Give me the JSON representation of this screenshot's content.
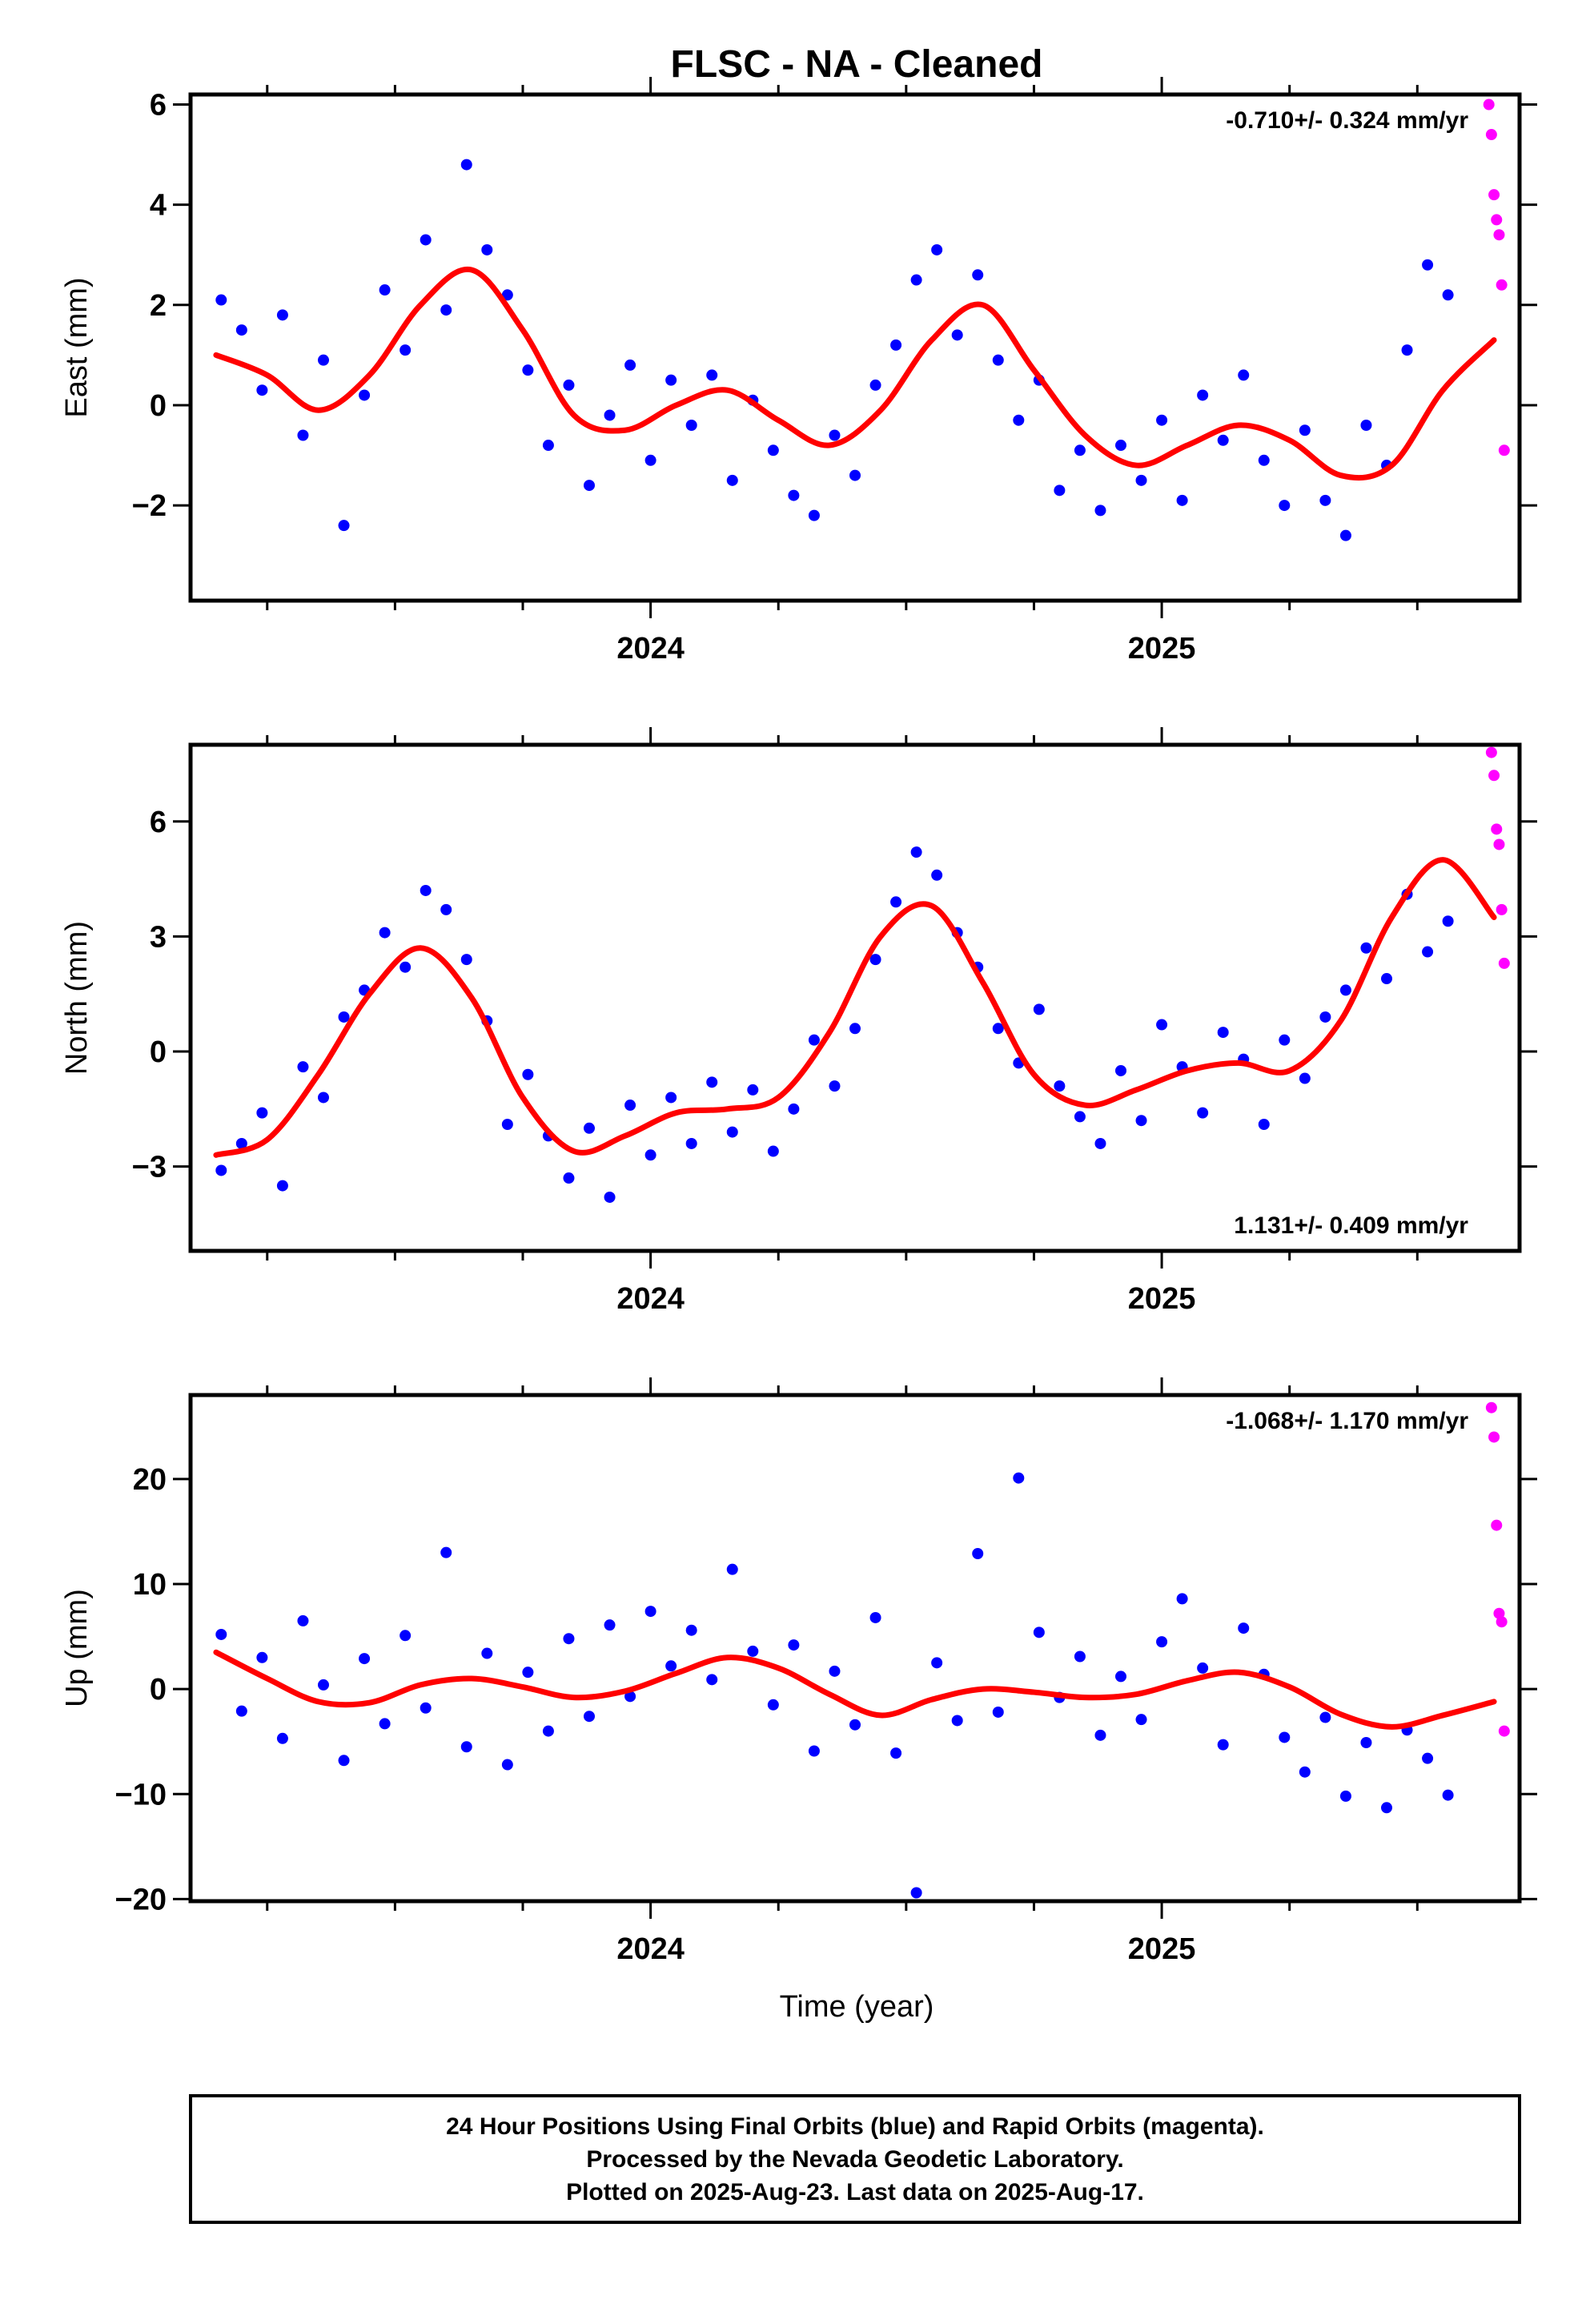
{
  "page": {
    "title": "FLSC  - NA - Cleaned",
    "xlabel": "Time (year)",
    "caption": [
      "24 Hour Positions Using Final Orbits (blue) and Rapid Orbits (magenta).",
      "Processed by the Nevada Geodetic Laboratory.",
      "Plotted on 2025-Aug-23. Last data on 2025-Aug-17."
    ]
  },
  "colors": {
    "final_orbits": "#0000ff",
    "rapid_orbits": "#ff00ff",
    "model_fit": "#ff0000",
    "frame": "#000000"
  },
  "chart_data": [
    {
      "type": "scatter",
      "component": "east",
      "ylabel": "East (mm)",
      "rate_label": "-0.710+/- 0.324 mm/yr",
      "rate_position": "top-right",
      "xlim": [
        2023.1,
        2025.7
      ],
      "ylim": [
        -3.9,
        6.2
      ],
      "x_ticks": [
        2024,
        2025
      ],
      "x_tick_labels": [
        "2024",
        "2025"
      ],
      "y_ticks": [
        -2,
        0,
        2,
        4,
        6
      ],
      "y_tick_labels": [
        "−2",
        "0",
        "2",
        "4",
        "6"
      ],
      "model_fit": {
        "x": [
          2023.15,
          2023.25,
          2023.35,
          2023.45,
          2023.55,
          2023.65,
          2023.75,
          2023.85,
          2023.95,
          2024.05,
          2024.15,
          2024.25,
          2024.35,
          2024.45,
          2024.55,
          2024.65,
          2024.75,
          2024.85,
          2024.95,
          2025.05,
          2025.15,
          2025.25,
          2025.35,
          2025.45,
          2025.55,
          2025.65
        ],
        "y": [
          1.0,
          0.6,
          -0.1,
          0.6,
          2.0,
          2.7,
          1.5,
          -0.2,
          -0.5,
          0.0,
          0.3,
          -0.3,
          -0.8,
          -0.1,
          1.3,
          2.0,
          0.7,
          -0.6,
          -1.2,
          -0.8,
          -0.4,
          -0.7,
          -1.4,
          -1.2,
          0.3,
          1.3
        ]
      },
      "final_orbits": {
        "x": [
          2023.16,
          2023.2,
          2023.24,
          2023.28,
          2023.32,
          2023.36,
          2023.4,
          2023.44,
          2023.48,
          2023.52,
          2023.56,
          2023.6,
          2023.64,
          2023.68,
          2023.72,
          2023.76,
          2023.8,
          2023.84,
          2023.88,
          2023.92,
          2023.96,
          2024.0,
          2024.04,
          2024.08,
          2024.12,
          2024.16,
          2024.2,
          2024.24,
          2024.28,
          2024.32,
          2024.36,
          2024.4,
          2024.44,
          2024.48,
          2024.52,
          2024.56,
          2024.6,
          2024.64,
          2024.68,
          2024.72,
          2024.76,
          2024.8,
          2024.84,
          2024.88,
          2024.92,
          2024.96,
          2025.0,
          2025.04,
          2025.08,
          2025.12,
          2025.16,
          2025.2,
          2025.24,
          2025.28,
          2025.32,
          2025.36,
          2025.4,
          2025.44,
          2025.48,
          2025.52,
          2025.56
        ],
        "y": [
          2.1,
          1.5,
          0.3,
          1.8,
          -0.6,
          0.9,
          -2.4,
          0.2,
          2.3,
          1.1,
          3.3,
          1.9,
          4.8,
          3.1,
          2.2,
          0.7,
          -0.8,
          0.4,
          -1.6,
          -0.2,
          0.8,
          -1.1,
          0.5,
          -0.4,
          0.6,
          -1.5,
          0.1,
          -0.9,
          -1.8,
          -2.2,
          -0.6,
          -1.4,
          0.4,
          1.2,
          2.5,
          3.1,
          1.4,
          2.6,
          0.9,
          -0.3,
          0.5,
          -1.7,
          -0.9,
          -2.1,
          -0.8,
          -1.5,
          -0.3,
          -1.9,
          0.2,
          -0.7,
          0.6,
          -1.1,
          -2.0,
          -0.5,
          -1.9,
          -2.6,
          -0.4,
          -1.2,
          1.1,
          2.8,
          2.2
        ]
      },
      "rapid_orbits": {
        "x": [
          2025.64,
          2025.645,
          2025.65,
          2025.655,
          2025.66,
          2025.665,
          2025.67
        ],
        "y": [
          6.0,
          5.4,
          4.2,
          3.7,
          3.4,
          2.4,
          -0.9
        ]
      }
    },
    {
      "type": "scatter",
      "component": "north",
      "ylabel": "North (mm)",
      "rate_label": "1.131+/- 0.409 mm/yr",
      "rate_position": "bottom-right",
      "xlim": [
        2023.1,
        2025.7
      ],
      "ylim": [
        -5.2,
        8.0
      ],
      "x_ticks": [
        2024,
        2025
      ],
      "x_tick_labels": [
        "2024",
        "2025"
      ],
      "y_ticks": [
        -3,
        0,
        3,
        6
      ],
      "y_tick_labels": [
        "−3",
        "0",
        "3",
        "6"
      ],
      "model_fit": {
        "x": [
          2023.15,
          2023.25,
          2023.35,
          2023.45,
          2023.55,
          2023.65,
          2023.75,
          2023.85,
          2023.95,
          2024.05,
          2024.15,
          2024.25,
          2024.35,
          2024.45,
          2024.55,
          2024.65,
          2024.75,
          2024.85,
          2024.95,
          2025.05,
          2025.15,
          2025.25,
          2025.35,
          2025.45,
          2025.55,
          2025.65
        ],
        "y": [
          -2.7,
          -2.3,
          -0.6,
          1.5,
          2.7,
          1.4,
          -1.2,
          -2.6,
          -2.2,
          -1.6,
          -1.5,
          -1.2,
          0.5,
          3.0,
          3.8,
          1.8,
          -0.6,
          -1.4,
          -1.0,
          -0.5,
          -0.3,
          -0.5,
          0.8,
          3.5,
          5.0,
          3.5
        ]
      },
      "final_orbits": {
        "x": [
          2023.16,
          2023.2,
          2023.24,
          2023.28,
          2023.32,
          2023.36,
          2023.4,
          2023.44,
          2023.48,
          2023.52,
          2023.56,
          2023.6,
          2023.64,
          2023.68,
          2023.72,
          2023.76,
          2023.8,
          2023.84,
          2023.88,
          2023.92,
          2023.96,
          2024.0,
          2024.04,
          2024.08,
          2024.12,
          2024.16,
          2024.2,
          2024.24,
          2024.28,
          2024.32,
          2024.36,
          2024.4,
          2024.44,
          2024.48,
          2024.52,
          2024.56,
          2024.6,
          2024.64,
          2024.68,
          2024.72,
          2024.76,
          2024.8,
          2024.84,
          2024.88,
          2024.92,
          2024.96,
          2025.0,
          2025.04,
          2025.08,
          2025.12,
          2025.16,
          2025.2,
          2025.24,
          2025.28,
          2025.32,
          2025.36,
          2025.4,
          2025.44,
          2025.48,
          2025.52,
          2025.56
        ],
        "y": [
          -3.1,
          -2.4,
          -1.6,
          -3.5,
          -0.4,
          -1.2,
          0.9,
          1.6,
          3.1,
          2.2,
          4.2,
          3.7,
          2.4,
          0.8,
          -1.9,
          -0.6,
          -2.2,
          -3.3,
          -2.0,
          -3.8,
          -1.4,
          -2.7,
          -1.2,
          -2.4,
          -0.8,
          -2.1,
          -1.0,
          -2.6,
          -1.5,
          0.3,
          -0.9,
          0.6,
          2.4,
          3.9,
          5.2,
          4.6,
          3.1,
          2.2,
          0.6,
          -0.3,
          1.1,
          -0.9,
          -1.7,
          -2.4,
          -0.5,
          -1.8,
          0.7,
          -0.4,
          -1.6,
          0.5,
          -0.2,
          -1.9,
          0.3,
          -0.7,
          0.9,
          1.6,
          2.7,
          1.9,
          4.1,
          2.6,
          3.4
        ]
      },
      "rapid_orbits": {
        "x": [
          2025.645,
          2025.65,
          2025.655,
          2025.66,
          2025.665,
          2025.67
        ],
        "y": [
          7.8,
          7.2,
          5.8,
          5.4,
          3.7,
          2.3
        ]
      }
    },
    {
      "type": "scatter",
      "component": "up",
      "ylabel": "Up (mm)",
      "rate_label": "-1.068+/- 1.170 mm/yr",
      "rate_position": "top-right",
      "xlim": [
        2023.1,
        2025.7
      ],
      "ylim": [
        -20.2,
        28.0
      ],
      "x_ticks": [
        2024,
        2025
      ],
      "x_tick_labels": [
        "2024",
        "2025"
      ],
      "y_ticks": [
        -20,
        -10,
        0,
        10,
        20
      ],
      "y_tick_labels": [
        "−20",
        "−10",
        "0",
        "10",
        "20"
      ],
      "model_fit": {
        "x": [
          2023.15,
          2023.25,
          2023.35,
          2023.45,
          2023.55,
          2023.65,
          2023.75,
          2023.85,
          2023.95,
          2024.05,
          2024.15,
          2024.25,
          2024.35,
          2024.45,
          2024.55,
          2024.65,
          2024.75,
          2024.85,
          2024.95,
          2025.05,
          2025.15,
          2025.25,
          2025.35,
          2025.45,
          2025.55,
          2025.65
        ],
        "y": [
          3.5,
          1.0,
          -1.2,
          -1.3,
          0.4,
          1.0,
          0.2,
          -0.8,
          -0.2,
          1.5,
          3.0,
          2.0,
          -0.5,
          -2.5,
          -1.0,
          0.0,
          -0.3,
          -0.8,
          -0.5,
          0.8,
          1.6,
          0.2,
          -2.4,
          -3.6,
          -2.5,
          -1.2
        ]
      },
      "final_orbits": {
        "x": [
          2023.16,
          2023.2,
          2023.24,
          2023.28,
          2023.32,
          2023.36,
          2023.4,
          2023.44,
          2023.48,
          2023.52,
          2023.56,
          2023.6,
          2023.64,
          2023.68,
          2023.72,
          2023.76,
          2023.8,
          2023.84,
          2023.88,
          2023.92,
          2023.96,
          2024.0,
          2024.04,
          2024.08,
          2024.12,
          2024.16,
          2024.2,
          2024.24,
          2024.28,
          2024.32,
          2024.36,
          2024.4,
          2024.44,
          2024.48,
          2024.52,
          2024.56,
          2024.6,
          2024.64,
          2024.68,
          2024.72,
          2024.76,
          2024.8,
          2024.84,
          2024.88,
          2024.92,
          2024.96,
          2025.0,
          2025.04,
          2025.08,
          2025.12,
          2025.16,
          2025.2,
          2025.24,
          2025.28,
          2025.32,
          2025.36,
          2025.4,
          2025.44,
          2025.48,
          2025.52,
          2025.56
        ],
        "y": [
          5.2,
          -2.1,
          3.0,
          -4.7,
          6.5,
          0.4,
          -6.8,
          2.9,
          -3.3,
          5.1,
          -1.8,
          13.0,
          -5.5,
          3.4,
          -7.2,
          1.6,
          -4.0,
          4.8,
          -2.6,
          6.1,
          -0.7,
          7.4,
          2.2,
          5.6,
          0.9,
          11.4,
          3.6,
          -1.5,
          4.2,
          -5.9,
          1.7,
          -3.4,
          6.8,
          -6.1,
          -19.4,
          2.5,
          -3.0,
          12.9,
          -2.2,
          20.1,
          5.4,
          -0.8,
          3.1,
          -4.4,
          1.2,
          -2.9,
          4.5,
          8.6,
          2.0,
          -5.3,
          5.8,
          1.4,
          -4.6,
          -7.9,
          -2.7,
          -10.2,
          -5.1,
          -11.3,
          -3.9,
          -6.6,
          -10.1
        ]
      },
      "rapid_orbits": {
        "x": [
          2025.645,
          2025.65,
          2025.655,
          2025.66,
          2025.665,
          2025.67
        ],
        "y": [
          26.8,
          24.0,
          15.6,
          7.2,
          6.4,
          -4.0
        ]
      }
    }
  ]
}
